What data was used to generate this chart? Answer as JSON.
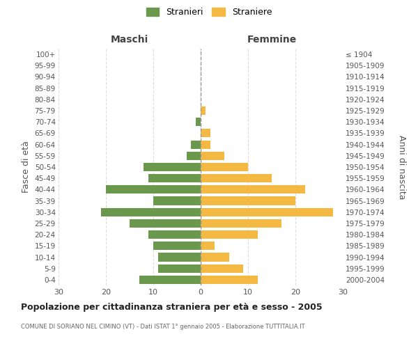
{
  "age_groups": [
    "0-4",
    "5-9",
    "10-14",
    "15-19",
    "20-24",
    "25-29",
    "30-34",
    "35-39",
    "40-44",
    "45-49",
    "50-54",
    "55-59",
    "60-64",
    "65-69",
    "70-74",
    "75-79",
    "80-84",
    "85-89",
    "90-94",
    "95-99",
    "100+"
  ],
  "birth_years": [
    "2000-2004",
    "1995-1999",
    "1990-1994",
    "1985-1989",
    "1980-1984",
    "1975-1979",
    "1970-1974",
    "1965-1969",
    "1960-1964",
    "1955-1959",
    "1950-1954",
    "1945-1949",
    "1940-1944",
    "1935-1939",
    "1930-1934",
    "1925-1929",
    "1920-1924",
    "1915-1919",
    "1910-1914",
    "1905-1909",
    "≤ 1904"
  ],
  "maschi": [
    13,
    9,
    9,
    10,
    11,
    15,
    21,
    10,
    20,
    11,
    12,
    3,
    2,
    0,
    1,
    0,
    0,
    0,
    0,
    0,
    0
  ],
  "femmine": [
    12,
    9,
    6,
    3,
    12,
    17,
    28,
    20,
    22,
    15,
    10,
    5,
    2,
    2,
    0,
    1,
    0,
    0,
    0,
    0,
    0
  ],
  "maschi_color": "#6a994e",
  "femmine_color": "#f4b942",
  "title": "Popolazione per cittadinanza straniera per età e sesso - 2005",
  "subtitle": "COMUNE DI SORIANO NEL CIMINO (VT) - Dati ISTAT 1° gennaio 2005 - Elaborazione TUTTITALIA.IT",
  "xlabel_left": "Maschi",
  "xlabel_right": "Femmine",
  "ylabel_left": "Fasce di età",
  "ylabel_right": "Anni di nascita",
  "legend_maschi": "Stranieri",
  "legend_femmine": "Straniere",
  "xlim": 30,
  "background_color": "#ffffff",
  "grid_color": "#dddddd",
  "center_line_color": "#999999"
}
